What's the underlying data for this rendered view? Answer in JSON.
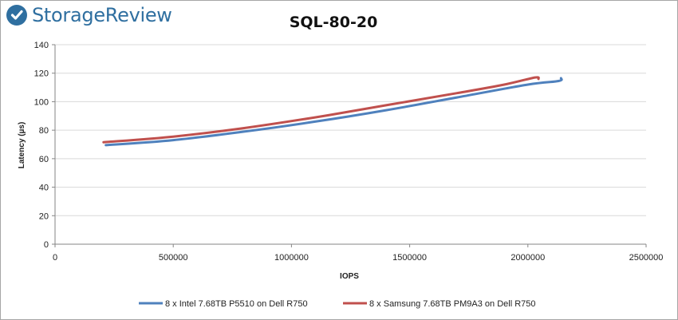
{
  "brand": {
    "name": "StorageReview"
  },
  "colors": {
    "series1": "#4f81bd",
    "series2": "#c0504d",
    "brand": "#2f6fa0",
    "grid": "#d9d9d9",
    "axis": "#868686"
  },
  "chart_data": {
    "type": "line",
    "title": "SQL-80-20",
    "xlabel": "IOPS",
    "ylabel": "Latency (µs)",
    "xlim": [
      0,
      2500000
    ],
    "ylim": [
      0,
      140
    ],
    "x_ticks": [
      0,
      500000,
      1000000,
      1500000,
      2000000,
      2500000
    ],
    "y_ticks": [
      0,
      20,
      40,
      60,
      80,
      100,
      120,
      140
    ],
    "grid": "horizontal",
    "legend": "bottom",
    "series": [
      {
        "name": "8 x Intel 7.68TB P5510 on Dell R750",
        "color": "#4f81bd",
        "points": [
          [
            215000,
            69.5
          ],
          [
            500000,
            73
          ],
          [
            800000,
            79
          ],
          [
            1100000,
            86
          ],
          [
            1400000,
            94
          ],
          [
            1700000,
            103
          ],
          [
            2000000,
            112
          ],
          [
            2130000,
            114.5
          ],
          [
            2140000,
            116.5
          ]
        ]
      },
      {
        "name": "8 x Samsung 7.68TB PM9A3 on Dell R750",
        "color": "#c0504d",
        "points": [
          [
            205000,
            71.5
          ],
          [
            500000,
            75.5
          ],
          [
            800000,
            81.5
          ],
          [
            1100000,
            89
          ],
          [
            1400000,
            97.5
          ],
          [
            1700000,
            106
          ],
          [
            1900000,
            112
          ],
          [
            2030000,
            117
          ],
          [
            2045000,
            116
          ]
        ]
      }
    ]
  }
}
